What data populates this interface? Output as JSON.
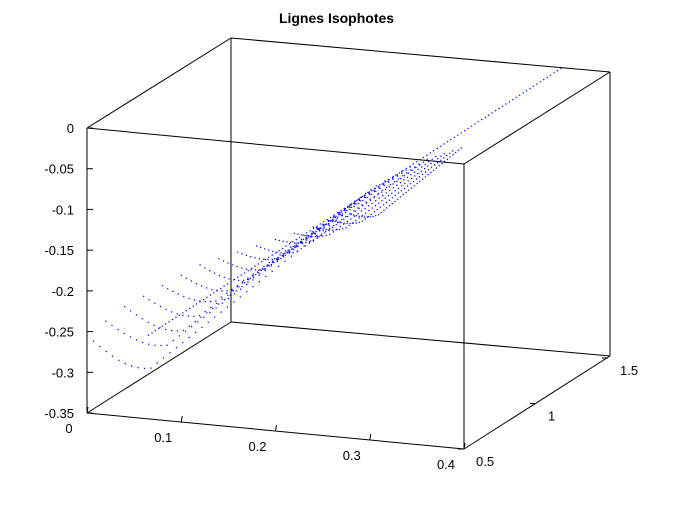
{
  "chart_data": {
    "type": "scatter",
    "title": "Lignes Isophotes",
    "xlabel": "",
    "ylabel": "",
    "zlabel": "",
    "projection": "3d-box",
    "grid": false,
    "xlim": [
      0,
      0.4
    ],
    "ylim": [
      0.5,
      1.5
    ],
    "zlim": [
      -0.35,
      0
    ],
    "x_ticks": [
      "0",
      "0.1",
      "0.2",
      "0.3",
      "0.4"
    ],
    "y_ticks": [
      "0.5",
      "1",
      "1.5"
    ],
    "z_ticks": [
      "0",
      "-0.05",
      "-0.1",
      "-0.15",
      "-0.2",
      "-0.25",
      "-0.3",
      "-0.35"
    ],
    "series": [
      {
        "marker": "dots",
        "color": "#0000ff",
        "description_curves": [
          {
            "x_start": 0.0,
            "z_start": -0.255,
            "z_min": -0.305
          },
          {
            "x_start": 0.02,
            "z_start": -0.235,
            "z_min": -0.275
          },
          {
            "x_start": 0.04,
            "z_start": -0.215,
            "z_min": -0.255
          },
          {
            "x_start": 0.06,
            "z_start": -0.2,
            "z_min": -0.235
          },
          {
            "x_start": 0.08,
            "z_start": -0.185,
            "z_min": -0.215
          },
          {
            "x_start": 0.1,
            "z_start": -0.17,
            "z_min": -0.2
          },
          {
            "x_start": 0.12,
            "z_start": -0.155,
            "z_min": -0.185
          },
          {
            "x_start": 0.14,
            "z_start": -0.145,
            "z_min": -0.17
          },
          {
            "x_start": 0.16,
            "z_start": -0.135,
            "z_min": -0.155
          },
          {
            "x_start": 0.18,
            "z_start": -0.125,
            "z_min": -0.145
          },
          {
            "x_start": 0.2,
            "z_start": -0.115,
            "z_min": -0.13
          },
          {
            "x_start": 0.22,
            "z_start": -0.105,
            "z_min": -0.12
          },
          {
            "x_start": 0.24,
            "z_start": -0.095,
            "z_min": -0.11
          },
          {
            "x_start": 0.26,
            "z_start": -0.085,
            "z_min": -0.1
          },
          {
            "x_start": 0.28,
            "z_start": -0.075,
            "z_min": -0.09
          }
        ]
      }
    ]
  }
}
